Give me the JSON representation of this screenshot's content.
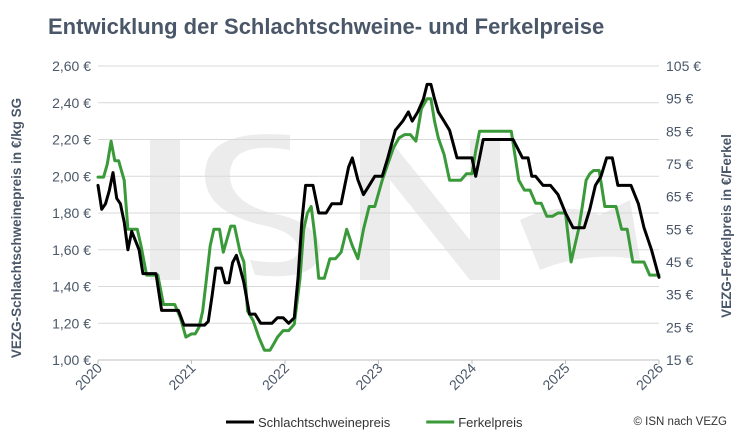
{
  "chart_data": {
    "type": "line",
    "title": "Entwicklung der Schlachtschweine- und Ferkelpreise",
    "ylabel_left": "VEZG-Schlachtschweinepreis in €/kg SG",
    "ylabel_right": "VEZG-Ferkelpreis in €/Ferkel",
    "xlim": [
      2020,
      2026
    ],
    "ylim_left": [
      1.0,
      2.6
    ],
    "ylim_right": [
      15,
      105
    ],
    "x_ticks": [
      "2020",
      "2021",
      "2022",
      "2023",
      "2024",
      "2025",
      "2026"
    ],
    "y_ticks_left": [
      "1,00 €",
      "1,20 €",
      "1,40 €",
      "1,60 €",
      "1,80 €",
      "2,00 €",
      "2,20 €",
      "2,40 €",
      "2,60 €"
    ],
    "y_ticks_right": [
      "15 €",
      "25 €",
      "35 €",
      "45 €",
      "55 €",
      "65 €",
      "75 €",
      "85 €",
      "95 €",
      "105 €"
    ],
    "grid": "horizontal",
    "legend_position": "bottom",
    "watermark": "ISN",
    "series": [
      {
        "name": "Schlachtschweinepreis",
        "axis": "left",
        "color": "#000000",
        "x": [
          2020.0,
          2020.04,
          2020.08,
          2020.12,
          2020.16,
          2020.2,
          2020.24,
          2020.28,
          2020.32,
          2020.36,
          2020.4,
          2020.44,
          2020.48,
          2020.52,
          2020.56,
          2020.62,
          2020.68,
          2020.74,
          2020.8,
          2020.86,
          2020.92,
          2020.98,
          2021.04,
          2021.1,
          2021.14,
          2021.18,
          2021.22,
          2021.26,
          2021.32,
          2021.36,
          2021.4,
          2021.44,
          2021.48,
          2021.52,
          2021.56,
          2021.62,
          2021.68,
          2021.74,
          2021.8,
          2021.86,
          2021.92,
          2021.98,
          2022.04,
          2022.1,
          2022.14,
          2022.18,
          2022.22,
          2022.26,
          2022.3,
          2022.36,
          2022.44,
          2022.5,
          2022.56,
          2022.6,
          2022.64,
          2022.68,
          2022.72,
          2022.78,
          2022.84,
          2022.9,
          2022.96,
          2023.04,
          2023.1,
          2023.18,
          2023.26,
          2023.32,
          2023.36,
          2023.42,
          2023.48,
          2023.52,
          2023.56,
          2023.6,
          2023.64,
          2023.7,
          2023.76,
          2023.84,
          2023.92,
          2024.0,
          2024.04,
          2024.08,
          2024.12,
          2024.18,
          2024.26,
          2024.34,
          2024.44,
          2024.54,
          2024.6,
          2024.64,
          2024.68,
          2024.76,
          2024.84,
          2024.92,
          2025.0,
          2025.08,
          2025.14,
          2025.2,
          2025.26,
          2025.32,
          2025.38,
          2025.44,
          2025.5,
          2025.56,
          2025.62,
          2025.7,
          2025.78,
          2025.84,
          2025.92,
          2026.0
        ],
        "y": [
          1.95,
          1.82,
          1.85,
          1.92,
          2.02,
          1.88,
          1.85,
          1.75,
          1.6,
          1.7,
          1.65,
          1.6,
          1.47,
          1.47,
          1.47,
          1.47,
          1.27,
          1.27,
          1.27,
          1.27,
          1.19,
          1.19,
          1.19,
          1.19,
          1.19,
          1.21,
          1.35,
          1.5,
          1.5,
          1.42,
          1.42,
          1.53,
          1.57,
          1.5,
          1.42,
          1.25,
          1.25,
          1.2,
          1.2,
          1.2,
          1.23,
          1.23,
          1.2,
          1.23,
          1.45,
          1.75,
          1.95,
          1.95,
          1.95,
          1.8,
          1.8,
          1.85,
          1.85,
          1.85,
          1.95,
          2.05,
          2.1,
          1.98,
          1.9,
          1.95,
          2.0,
          2.0,
          2.1,
          2.25,
          2.3,
          2.35,
          2.3,
          2.35,
          2.42,
          2.5,
          2.5,
          2.42,
          2.35,
          2.3,
          2.25,
          2.1,
          2.1,
          2.1,
          2.0,
          2.1,
          2.2,
          2.2,
          2.2,
          2.2,
          2.2,
          2.1,
          2.1,
          2.0,
          2.0,
          1.95,
          1.95,
          1.9,
          1.8,
          1.72,
          1.72,
          1.72,
          1.82,
          1.95,
          2.0,
          2.1,
          2.1,
          1.95,
          1.95,
          1.95,
          1.85,
          1.72,
          1.6,
          1.45
        ]
      },
      {
        "name": "Ferkelpreis",
        "axis": "right",
        "color": "#3a9a3a",
        "x": [
          2020.0,
          2020.06,
          2020.1,
          2020.14,
          2020.18,
          2020.22,
          2020.28,
          2020.32,
          2020.36,
          2020.42,
          2020.46,
          2020.52,
          2020.58,
          2020.64,
          2020.7,
          2020.76,
          2020.82,
          2020.88,
          2020.94,
          2021.0,
          2021.04,
          2021.08,
          2021.12,
          2021.16,
          2021.2,
          2021.24,
          2021.3,
          2021.34,
          2021.38,
          2021.42,
          2021.46,
          2021.52,
          2021.56,
          2021.6,
          2021.66,
          2021.72,
          2021.78,
          2021.84,
          2021.88,
          2021.92,
          2021.98,
          2022.04,
          2022.1,
          2022.16,
          2022.2,
          2022.24,
          2022.28,
          2022.32,
          2022.36,
          2022.42,
          2022.48,
          2022.54,
          2022.6,
          2022.66,
          2022.72,
          2022.78,
          2022.84,
          2022.9,
          2022.96,
          2023.04,
          2023.1,
          2023.16,
          2023.22,
          2023.28,
          2023.34,
          2023.4,
          2023.46,
          2023.52,
          2023.56,
          2023.6,
          2023.64,
          2023.7,
          2023.76,
          2023.82,
          2023.88,
          2023.94,
          2024.0,
          2024.04,
          2024.08,
          2024.12,
          2024.18,
          2024.26,
          2024.34,
          2024.42,
          2024.5,
          2024.56,
          2024.62,
          2024.68,
          2024.74,
          2024.8,
          2024.86,
          2024.92,
          2025.0,
          2025.06,
          2025.1,
          2025.14,
          2025.18,
          2025.22,
          2025.26,
          2025.3,
          2025.36,
          2025.42,
          2025.48,
          2025.54,
          2025.6,
          2025.66,
          2025.72,
          2025.78,
          2025.84,
          2025.9,
          2025.96,
          2026.0
        ],
        "y": [
          71,
          71,
          75,
          82,
          76,
          76,
          70,
          55,
          55,
          55,
          50,
          41,
          41,
          41,
          32,
          32,
          32,
          28,
          22,
          23,
          23,
          25,
          30,
          40,
          50,
          55,
          55,
          48,
          52,
          56,
          56,
          48,
          45,
          30,
          27,
          22,
          18,
          18,
          20,
          22,
          24,
          24,
          26,
          40,
          55,
          60,
          62,
          53,
          40,
          40,
          46,
          46,
          48,
          55,
          50,
          46,
          55,
          62,
          62,
          70,
          75,
          80,
          83,
          84,
          84,
          82,
          92,
          95,
          95,
          88,
          83,
          78,
          70,
          70,
          70,
          72,
          72,
          79,
          85,
          85,
          85,
          85,
          85,
          85,
          70,
          67,
          67,
          63,
          63,
          59,
          59,
          60,
          60,
          45,
          50,
          55,
          62,
          70,
          72,
          73,
          73,
          62,
          62,
          62,
          55,
          55,
          45,
          45,
          45,
          41,
          41,
          41
        ]
      }
    ]
  },
  "credit": "© ISN nach VEZG"
}
